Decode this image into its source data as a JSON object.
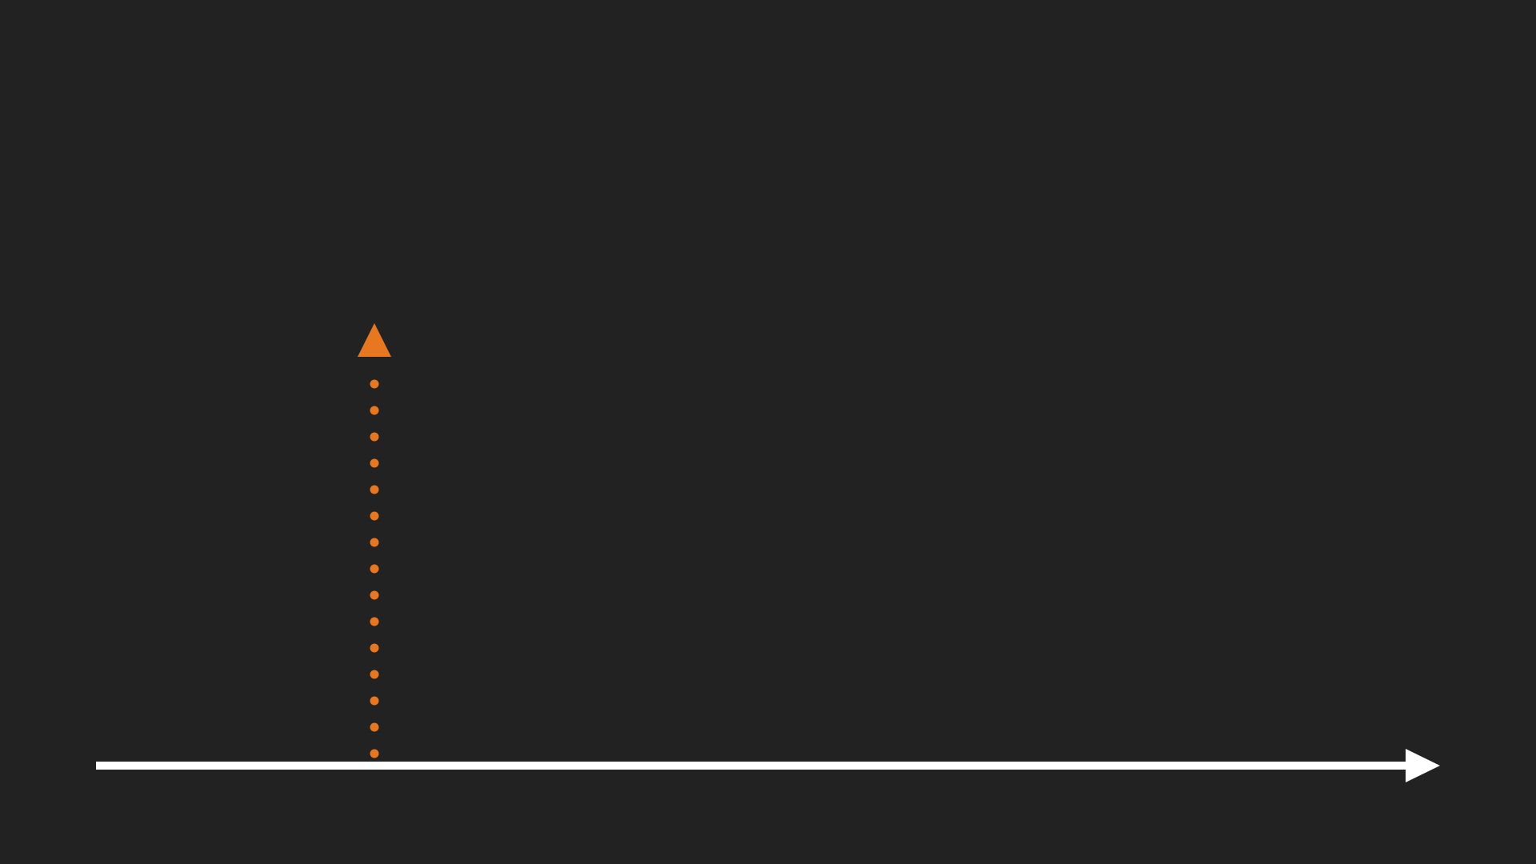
{
  "diagram": {
    "background_color": "#222222",
    "baseline_arrow": {
      "name": "horizontal-axis-arrow",
      "color": "#ffffff",
      "style": "solid",
      "direction": "right"
    },
    "marker_arrow": {
      "name": "dotted-vertical-arrow",
      "color": "#E87722",
      "style": "dotted",
      "direction": "up"
    }
  }
}
